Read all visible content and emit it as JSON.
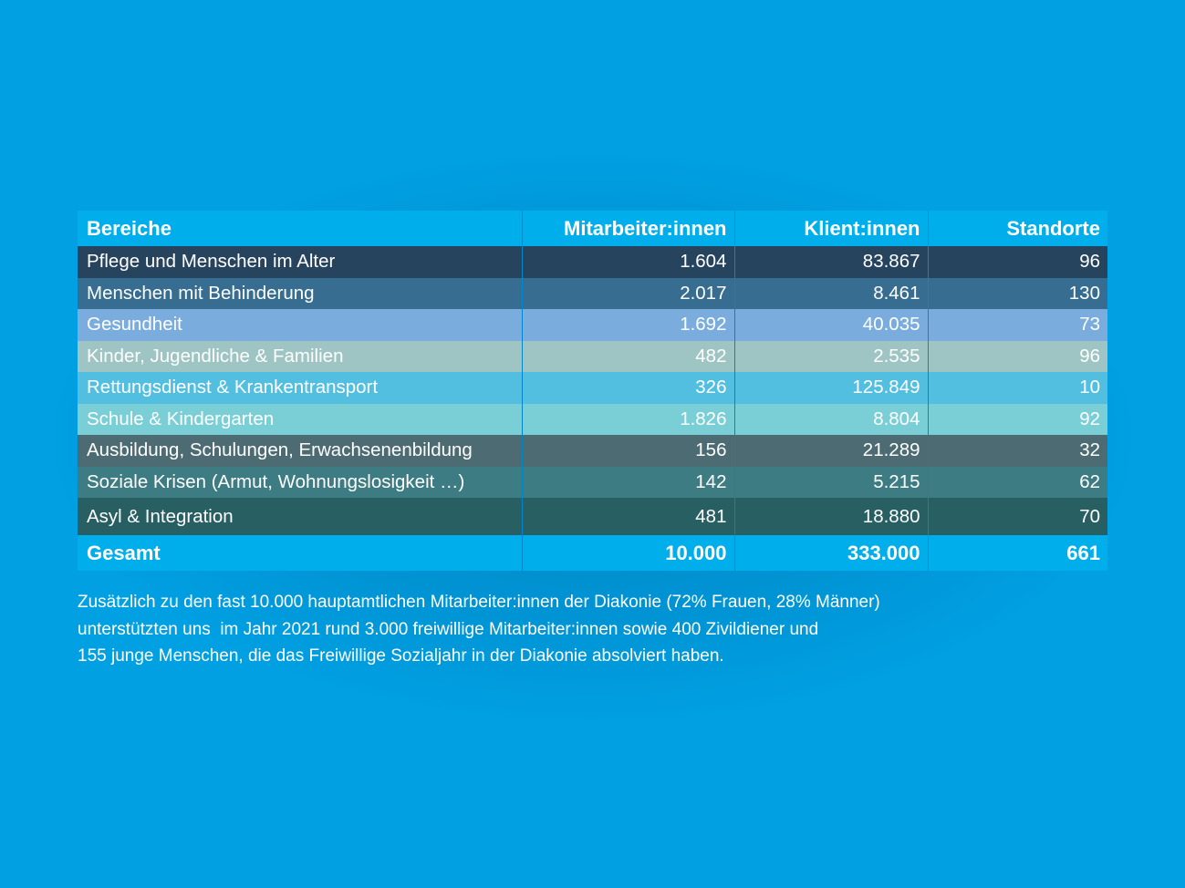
{
  "table": {
    "headers": [
      "Bereiche",
      "Mitarbeiter:innen",
      "Klient:innen",
      "Standorte"
    ],
    "rows": [
      {
        "bereich": "Pflege und Menschen im Alter",
        "mitarbeiter": "1.604",
        "klienten": "83.867",
        "standorte": "96",
        "color": "#27445f"
      },
      {
        "bereich": "Menschen mit Behinderung",
        "mitarbeiter": "2.017",
        "klienten": "8.461",
        "standorte": "130",
        "color": "#366d90"
      },
      {
        "bereich": "Gesundheit",
        "mitarbeiter": "1.692",
        "klienten": "40.035",
        "standorte": "73",
        "color": "#7aadde"
      },
      {
        "bereich": "Kinder, Jugendliche & Familien",
        "mitarbeiter": "482",
        "klienten": "2.535",
        "standorte": "96",
        "color": "#9ec4c4"
      },
      {
        "bereich": "Rettungsdienst & Krankentransport",
        "mitarbeiter": "326",
        "klienten": "125.849",
        "standorte": "10",
        "color": "#52bfe1"
      },
      {
        "bereich": "Schule & Kindergarten",
        "mitarbeiter": "1.826",
        "klienten": "8.804",
        "standorte": "92",
        "color": "#7acfd6"
      },
      {
        "bereich": "Ausbildung, Schulungen, Erwachsenenbildung",
        "mitarbeiter": "156",
        "klienten": "21.289",
        "standorte": "32",
        "color": "#4c6b73"
      },
      {
        "bereich": "Soziale Krisen (Armut, Wohnungslosigkeit …)",
        "mitarbeiter": "142",
        "klienten": "5.215",
        "standorte": "62",
        "color": "#3e7c84"
      },
      {
        "bereich": "Asyl & Integration",
        "mitarbeiter": "481",
        "klienten": "18.880",
        "standorte": "70",
        "color": "#275f63"
      }
    ],
    "total": {
      "label": "Gesamt",
      "mitarbeiter": "10.000",
      "klienten": "333.000",
      "standorte": "661"
    }
  },
  "caption": {
    "line1": "Zusätzlich zu den fast 10.000 hauptamtlichen Mitarbeiter:innen der Diakonie (72% Frauen, 28% Männer)",
    "line2": "unterstützten uns  im Jahr 2021 rund 3.000 freiwillige Mitarbeiter:innen sowie 400 Zivildiener und",
    "line3": "155 junge Menschen, die das Freiwillige Sozialjahr in der Diakonie absolviert haben."
  },
  "colors": {
    "background": "#00a0e3",
    "header_row": "#00aeeb"
  }
}
